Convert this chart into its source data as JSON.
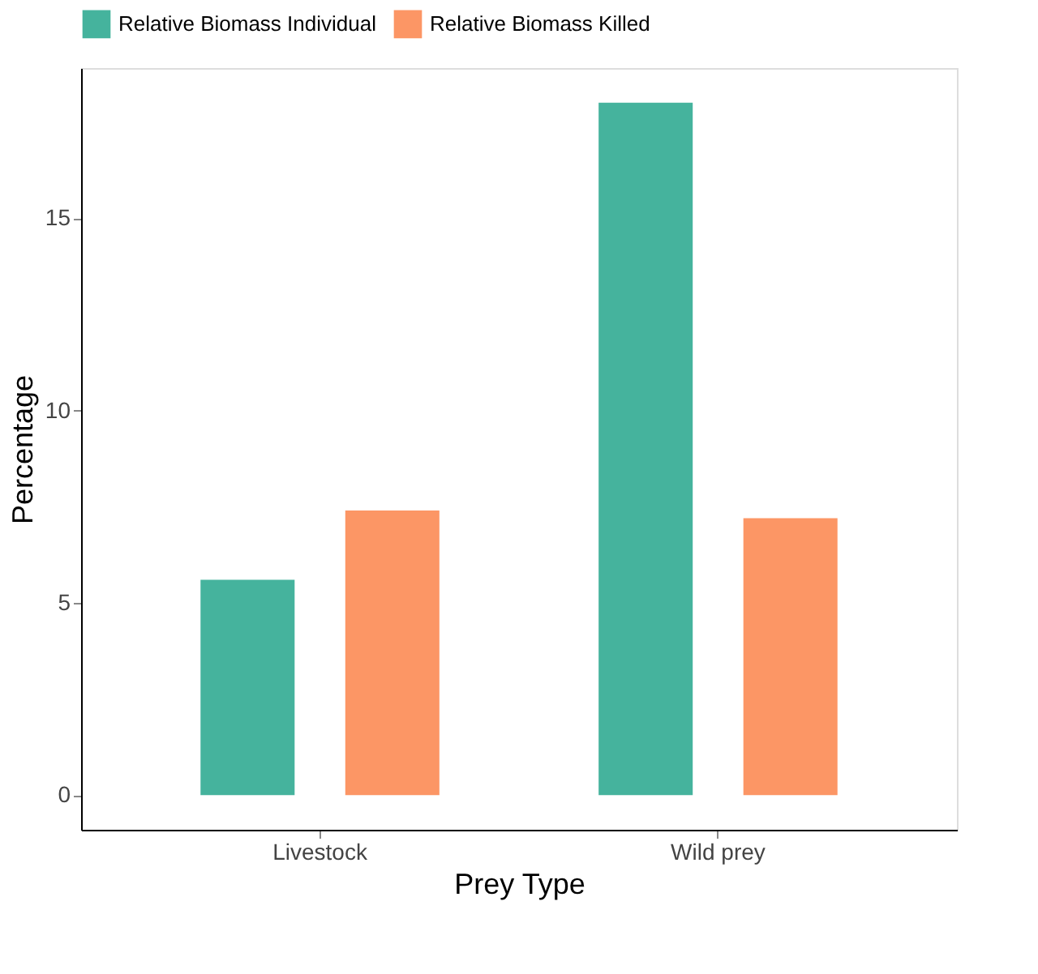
{
  "chart_data": {
    "type": "bar",
    "xlabel": "Prey Type",
    "ylabel": "Percentage",
    "categories": [
      "Livestock",
      "Wild prey"
    ],
    "series": [
      {
        "name": "Relative Biomass Individual",
        "color": "#45b39d",
        "values": [
          5.6,
          18.0
        ]
      },
      {
        "name": "Relative Biomass Killed",
        "color": "#fc9665",
        "values": [
          7.4,
          7.2
        ]
      }
    ],
    "ylim": [
      -0.9,
      18.9
    ],
    "yticks": [
      0,
      5,
      10,
      15
    ],
    "grid": false,
    "legend": "top"
  }
}
